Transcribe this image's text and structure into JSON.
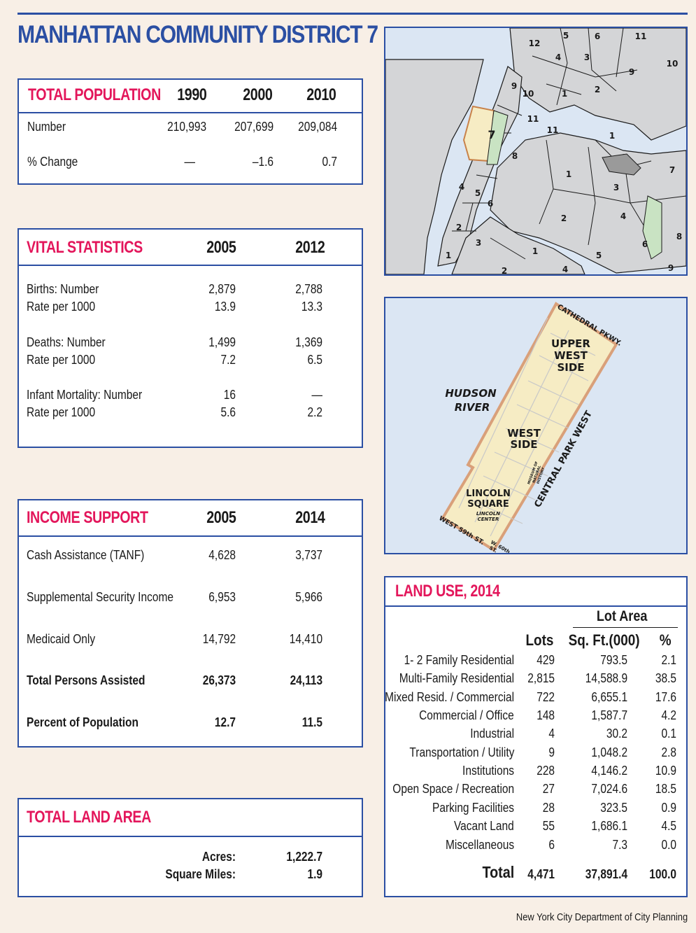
{
  "title": "MANHATTAN COMMUNITY DISTRICT 7",
  "population": {
    "header": "TOTAL POPULATION",
    "years": [
      "1990",
      "2000",
      "2010"
    ],
    "rows": [
      {
        "label": "Number",
        "values": [
          "210,993",
          "207,699",
          "209,084"
        ]
      },
      {
        "label": "% Change",
        "values": [
          "—",
          "–1.6",
          "0.7"
        ]
      }
    ]
  },
  "vital": {
    "header": "VITAL STATISTICS",
    "years": [
      "2005",
      "2012"
    ],
    "rows": [
      {
        "label": "Births: Number",
        "values": [
          "2,879",
          "2,788"
        ]
      },
      {
        "label": "Rate per 1000",
        "values": [
          "13.9",
          "13.3"
        ]
      },
      {
        "label": "Deaths: Number",
        "values": [
          "1,499",
          "1,369"
        ]
      },
      {
        "label": "Rate per 1000",
        "values": [
          "7.2",
          "6.5"
        ]
      },
      {
        "label": "Infant Mortality: Number",
        "values": [
          "16",
          "—"
        ]
      },
      {
        "label": "Rate per 1000",
        "values": [
          "5.6",
          "2.2"
        ]
      }
    ]
  },
  "income": {
    "header": "INCOME SUPPORT",
    "years": [
      "2005",
      "2014"
    ],
    "rows": [
      {
        "label": "Cash Assistance (TANF)",
        "values": [
          "4,628",
          "3,737"
        ]
      },
      {
        "label": "Supplemental Security Income",
        "values": [
          "6,953",
          "5,966"
        ]
      },
      {
        "label": "Medicaid Only",
        "values": [
          "14,792",
          "14,410"
        ]
      },
      {
        "label": "Total Persons Assisted",
        "values": [
          "26,373",
          "24,113"
        ]
      },
      {
        "label": "Percent of Population",
        "values": [
          "12.7",
          "11.5"
        ]
      }
    ]
  },
  "land_area": {
    "header": "TOTAL LAND AREA",
    "rows": [
      {
        "label": "Acres:",
        "value": "1,222.7"
      },
      {
        "label": "Square Miles:",
        "value": "1.9"
      }
    ]
  },
  "locator_map": {
    "numbers": [
      "12",
      "5",
      "6",
      "11",
      "4",
      "3",
      "10",
      "9",
      "9",
      "10",
      "1",
      "2",
      "11",
      "7",
      "11",
      "1",
      "8",
      "1",
      "3",
      "7",
      "4",
      "5",
      "6",
      "2",
      "4",
      "2",
      "3",
      "6",
      "8",
      "1",
      "1",
      "5",
      "9",
      "2",
      "4"
    ]
  },
  "neighborhood_map": {
    "labels": {
      "hudson": [
        "HUDSON",
        "RIVER"
      ],
      "upper_west_side": [
        "UPPER",
        "WEST",
        "SIDE"
      ],
      "west_side": [
        "WEST",
        "SIDE"
      ],
      "lincoln_square": [
        "LINCOLN",
        "SQUARE"
      ],
      "lincoln_center": [
        "LINCOLN",
        "CENTER"
      ],
      "museum": [
        "MUSEUM OF",
        "NATURAL",
        "HISTORY"
      ],
      "cathedral": "CATHEDRAL PKWY.",
      "central_park_west": "CENTRAL PARK WEST",
      "west_59": "WEST 59th ST.",
      "w60": [
        "W. 60th",
        "ST."
      ]
    }
  },
  "land_use": {
    "header": "LAND USE, 2014",
    "lot_area": "Lot Area",
    "col_lots": "Lots",
    "col_sqft": "Sq. Ft.(000)",
    "col_pct": "%",
    "rows": [
      {
        "label": "1- 2 Family Residential",
        "lots": "429",
        "sqft": "793.5",
        "pct": "2.1"
      },
      {
        "label": "Multi-Family Residential",
        "lots": "2,815",
        "sqft": "14,588.9",
        "pct": "38.5"
      },
      {
        "label": "Mixed Resid. / Commercial",
        "lots": "722",
        "sqft": "6,655.1",
        "pct": "17.6"
      },
      {
        "label": "Commercial / Office",
        "lots": "148",
        "sqft": "1,587.7",
        "pct": "4.2"
      },
      {
        "label": "Industrial",
        "lots": "4",
        "sqft": "30.2",
        "pct": "0.1"
      },
      {
        "label": "Transportation / Utility",
        "lots": "9",
        "sqft": "1,048.2",
        "pct": "2.8"
      },
      {
        "label": "Institutions",
        "lots": "228",
        "sqft": "4,146.2",
        "pct": "10.9"
      },
      {
        "label": "Open Space / Recreation",
        "lots": "27",
        "sqft": "7,024.6",
        "pct": "18.5"
      },
      {
        "label": "Parking Facilities",
        "lots": "28",
        "sqft": "323.5",
        "pct": "0.9"
      },
      {
        "label": "Vacant Land",
        "lots": "55",
        "sqft": "1,686.1",
        "pct": "4.5"
      },
      {
        "label": "Miscellaneous",
        "lots": "6",
        "sqft": "7.3",
        "pct": "0.0"
      }
    ],
    "total": {
      "label": "Total",
      "lots": "4,471",
      "sqft": "37,891.4",
      "pct": "100.0"
    }
  },
  "footer": "New York City Department of City Planning",
  "colors": {
    "accent_blue": "#2b4fa3",
    "header_red": "#e3165b",
    "background": "#f8efe6",
    "district_highlight": "#f6ecc4",
    "park_green": "#c9e3c3"
  }
}
